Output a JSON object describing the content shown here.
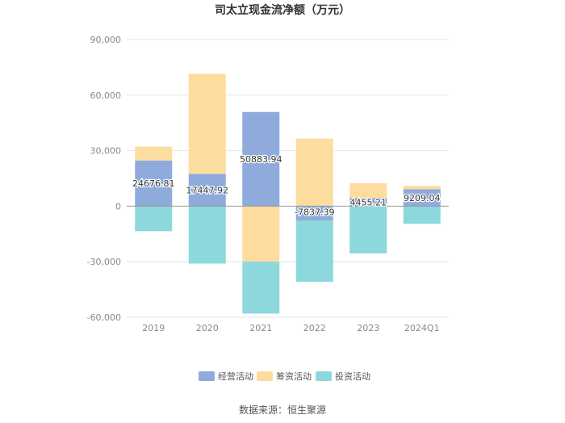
{
  "chart_data": {
    "type": "bar",
    "stacked": true,
    "title": "司太立现金流净额（万元）",
    "categories": [
      "2019",
      "2020",
      "2021",
      "2022",
      "2023",
      "2024Q1"
    ],
    "series": [
      {
        "name": "经营活动",
        "color": "#8eabdc",
        "values": [
          24676.81,
          17447.92,
          50883.94,
          -7837.39,
          4455.21,
          9209.04
        ],
        "labels": [
          "24676.81",
          "17447.92",
          "50883.94",
          "-7837.39",
          "4455.21",
          "9209.04"
        ]
      },
      {
        "name": "筹资活动",
        "color": "#fddc9f",
        "values": [
          7500,
          54000,
          -30000,
          36500,
          8000,
          1800
        ]
      },
      {
        "name": "投资活动",
        "color": "#8cd8dc",
        "values": [
          -13500,
          -31000,
          -28000,
          -33000,
          -25500,
          -9500
        ]
      }
    ],
    "ylim": [
      -60000,
      90000
    ],
    "yticks": [
      90000,
      60000,
      30000,
      0,
      -30000,
      -60000
    ],
    "ytick_labels": [
      "90,000",
      "60,000",
      "30,000",
      "0",
      "-30,000",
      "-60,000"
    ],
    "grid": true,
    "legend": "bottom-center"
  },
  "source_text": "数据来源：恒生聚源"
}
